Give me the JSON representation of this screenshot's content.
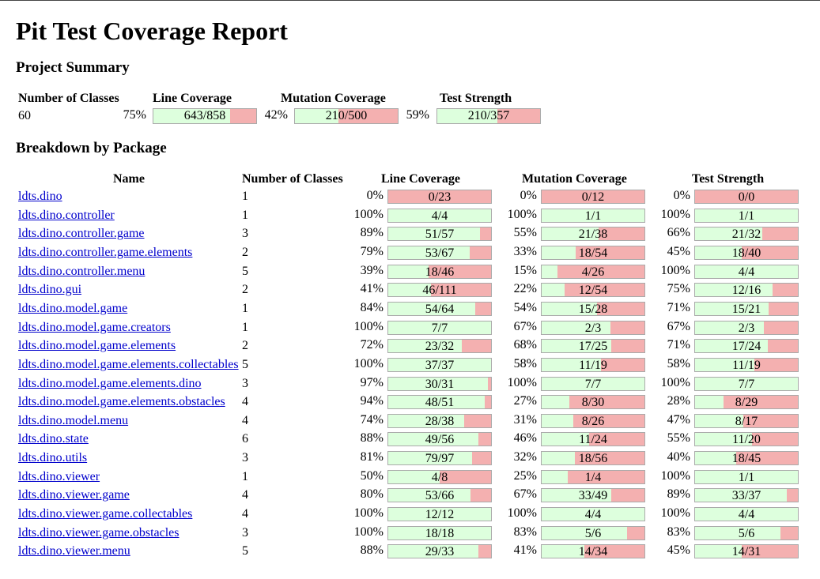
{
  "title": "Pit Test Coverage Report",
  "project_summary": {
    "heading": "Project Summary",
    "headers": {
      "classes": "Number of Classes",
      "line": "Line Coverage",
      "mutation": "Mutation Coverage",
      "strength": "Test Strength"
    },
    "classes": "60",
    "line": {
      "pct": "75%",
      "text": "643/858",
      "ratio": 0.7494
    },
    "mutation": {
      "pct": "42%",
      "text": "210/500",
      "ratio": 0.42
    },
    "strength": {
      "pct": "59%",
      "text": "210/357",
      "ratio": 0.5882
    }
  },
  "breakdown": {
    "heading": "Breakdown by Package",
    "headers": {
      "name": "Name",
      "classes": "Number of Classes",
      "line": "Line Coverage",
      "mutation": "Mutation Coverage",
      "strength": "Test Strength"
    },
    "rows": [
      {
        "name": "ldts.dino",
        "classes": "1",
        "line": {
          "pct": "0%",
          "text": "0/23",
          "ratio": 0
        },
        "mutation": {
          "pct": "0%",
          "text": "0/12",
          "ratio": 0
        },
        "strength": {
          "pct": "0%",
          "text": "0/0",
          "ratio": 0
        }
      },
      {
        "name": "ldts.dino.controller",
        "classes": "1",
        "line": {
          "pct": "100%",
          "text": "4/4",
          "ratio": 1
        },
        "mutation": {
          "pct": "100%",
          "text": "1/1",
          "ratio": 1
        },
        "strength": {
          "pct": "100%",
          "text": "1/1",
          "ratio": 1
        }
      },
      {
        "name": "ldts.dino.controller.game",
        "classes": "3",
        "line": {
          "pct": "89%",
          "text": "51/57",
          "ratio": 0.8947
        },
        "mutation": {
          "pct": "55%",
          "text": "21/38",
          "ratio": 0.5526
        },
        "strength": {
          "pct": "66%",
          "text": "21/32",
          "ratio": 0.6563
        }
      },
      {
        "name": "ldts.dino.controller.game.elements",
        "classes": "2",
        "line": {
          "pct": "79%",
          "text": "53/67",
          "ratio": 0.791
        },
        "mutation": {
          "pct": "33%",
          "text": "18/54",
          "ratio": 0.3333
        },
        "strength": {
          "pct": "45%",
          "text": "18/40",
          "ratio": 0.45
        }
      },
      {
        "name": "ldts.dino.controller.menu",
        "classes": "5",
        "line": {
          "pct": "39%",
          "text": "18/46",
          "ratio": 0.3913
        },
        "mutation": {
          "pct": "15%",
          "text": "4/26",
          "ratio": 0.1538
        },
        "strength": {
          "pct": "100%",
          "text": "4/4",
          "ratio": 1
        }
      },
      {
        "name": "ldts.dino.gui",
        "classes": "2",
        "line": {
          "pct": "41%",
          "text": "46/111",
          "ratio": 0.4144
        },
        "mutation": {
          "pct": "22%",
          "text": "12/54",
          "ratio": 0.2222
        },
        "strength": {
          "pct": "75%",
          "text": "12/16",
          "ratio": 0.75
        }
      },
      {
        "name": "ldts.dino.model.game",
        "classes": "1",
        "line": {
          "pct": "84%",
          "text": "54/64",
          "ratio": 0.8438
        },
        "mutation": {
          "pct": "54%",
          "text": "15/28",
          "ratio": 0.5357
        },
        "strength": {
          "pct": "71%",
          "text": "15/21",
          "ratio": 0.7143
        }
      },
      {
        "name": "ldts.dino.model.game.creators",
        "classes": "1",
        "line": {
          "pct": "100%",
          "text": "7/7",
          "ratio": 1
        },
        "mutation": {
          "pct": "67%",
          "text": "2/3",
          "ratio": 0.6667
        },
        "strength": {
          "pct": "67%",
          "text": "2/3",
          "ratio": 0.6667
        }
      },
      {
        "name": "ldts.dino.model.game.elements",
        "classes": "2",
        "line": {
          "pct": "72%",
          "text": "23/32",
          "ratio": 0.7188
        },
        "mutation": {
          "pct": "68%",
          "text": "17/25",
          "ratio": 0.68
        },
        "strength": {
          "pct": "71%",
          "text": "17/24",
          "ratio": 0.7083
        }
      },
      {
        "name": "ldts.dino.model.game.elements.collectables",
        "classes": "5",
        "line": {
          "pct": "100%",
          "text": "37/37",
          "ratio": 1
        },
        "mutation": {
          "pct": "58%",
          "text": "11/19",
          "ratio": 0.5789
        },
        "strength": {
          "pct": "58%",
          "text": "11/19",
          "ratio": 0.5789
        }
      },
      {
        "name": "ldts.dino.model.game.elements.dino",
        "classes": "3",
        "line": {
          "pct": "97%",
          "text": "30/31",
          "ratio": 0.9677
        },
        "mutation": {
          "pct": "100%",
          "text": "7/7",
          "ratio": 1
        },
        "strength": {
          "pct": "100%",
          "text": "7/7",
          "ratio": 1
        }
      },
      {
        "name": "ldts.dino.model.game.elements.obstacles",
        "classes": "4",
        "line": {
          "pct": "94%",
          "text": "48/51",
          "ratio": 0.9412
        },
        "mutation": {
          "pct": "27%",
          "text": "8/30",
          "ratio": 0.2667
        },
        "strength": {
          "pct": "28%",
          "text": "8/29",
          "ratio": 0.2759
        }
      },
      {
        "name": "ldts.dino.model.menu",
        "classes": "4",
        "line": {
          "pct": "74%",
          "text": "28/38",
          "ratio": 0.7368
        },
        "mutation": {
          "pct": "31%",
          "text": "8/26",
          "ratio": 0.3077
        },
        "strength": {
          "pct": "47%",
          "text": "8/17",
          "ratio": 0.4706
        }
      },
      {
        "name": "ldts.dino.state",
        "classes": "6",
        "line": {
          "pct": "88%",
          "text": "49/56",
          "ratio": 0.875
        },
        "mutation": {
          "pct": "46%",
          "text": "11/24",
          "ratio": 0.4583
        },
        "strength": {
          "pct": "55%",
          "text": "11/20",
          "ratio": 0.55
        }
      },
      {
        "name": "ldts.dino.utils",
        "classes": "3",
        "line": {
          "pct": "81%",
          "text": "79/97",
          "ratio": 0.8144
        },
        "mutation": {
          "pct": "32%",
          "text": "18/56",
          "ratio": 0.3214
        },
        "strength": {
          "pct": "40%",
          "text": "18/45",
          "ratio": 0.4
        }
      },
      {
        "name": "ldts.dino.viewer",
        "classes": "1",
        "line": {
          "pct": "50%",
          "text": "4/8",
          "ratio": 0.5
        },
        "mutation": {
          "pct": "25%",
          "text": "1/4",
          "ratio": 0.25
        },
        "strength": {
          "pct": "100%",
          "text": "1/1",
          "ratio": 1
        }
      },
      {
        "name": "ldts.dino.viewer.game",
        "classes": "4",
        "line": {
          "pct": "80%",
          "text": "53/66",
          "ratio": 0.803
        },
        "mutation": {
          "pct": "67%",
          "text": "33/49",
          "ratio": 0.6735
        },
        "strength": {
          "pct": "89%",
          "text": "33/37",
          "ratio": 0.8919
        }
      },
      {
        "name": "ldts.dino.viewer.game.collectables",
        "classes": "4",
        "line": {
          "pct": "100%",
          "text": "12/12",
          "ratio": 1
        },
        "mutation": {
          "pct": "100%",
          "text": "4/4",
          "ratio": 1
        },
        "strength": {
          "pct": "100%",
          "text": "4/4",
          "ratio": 1
        }
      },
      {
        "name": "ldts.dino.viewer.game.obstacles",
        "classes": "3",
        "line": {
          "pct": "100%",
          "text": "18/18",
          "ratio": 1
        },
        "mutation": {
          "pct": "83%",
          "text": "5/6",
          "ratio": 0.8333
        },
        "strength": {
          "pct": "83%",
          "text": "5/6",
          "ratio": 0.8333
        }
      },
      {
        "name": "ldts.dino.viewer.menu",
        "classes": "5",
        "line": {
          "pct": "88%",
          "text": "29/33",
          "ratio": 0.8788
        },
        "mutation": {
          "pct": "41%",
          "text": "14/34",
          "ratio": 0.4118
        },
        "strength": {
          "pct": "45%",
          "text": "14/31",
          "ratio": 0.4516
        }
      }
    ]
  },
  "colors": {
    "covered": "#ddffdd",
    "uncovered": "#f4b0b0",
    "link": "#0000cc"
  }
}
